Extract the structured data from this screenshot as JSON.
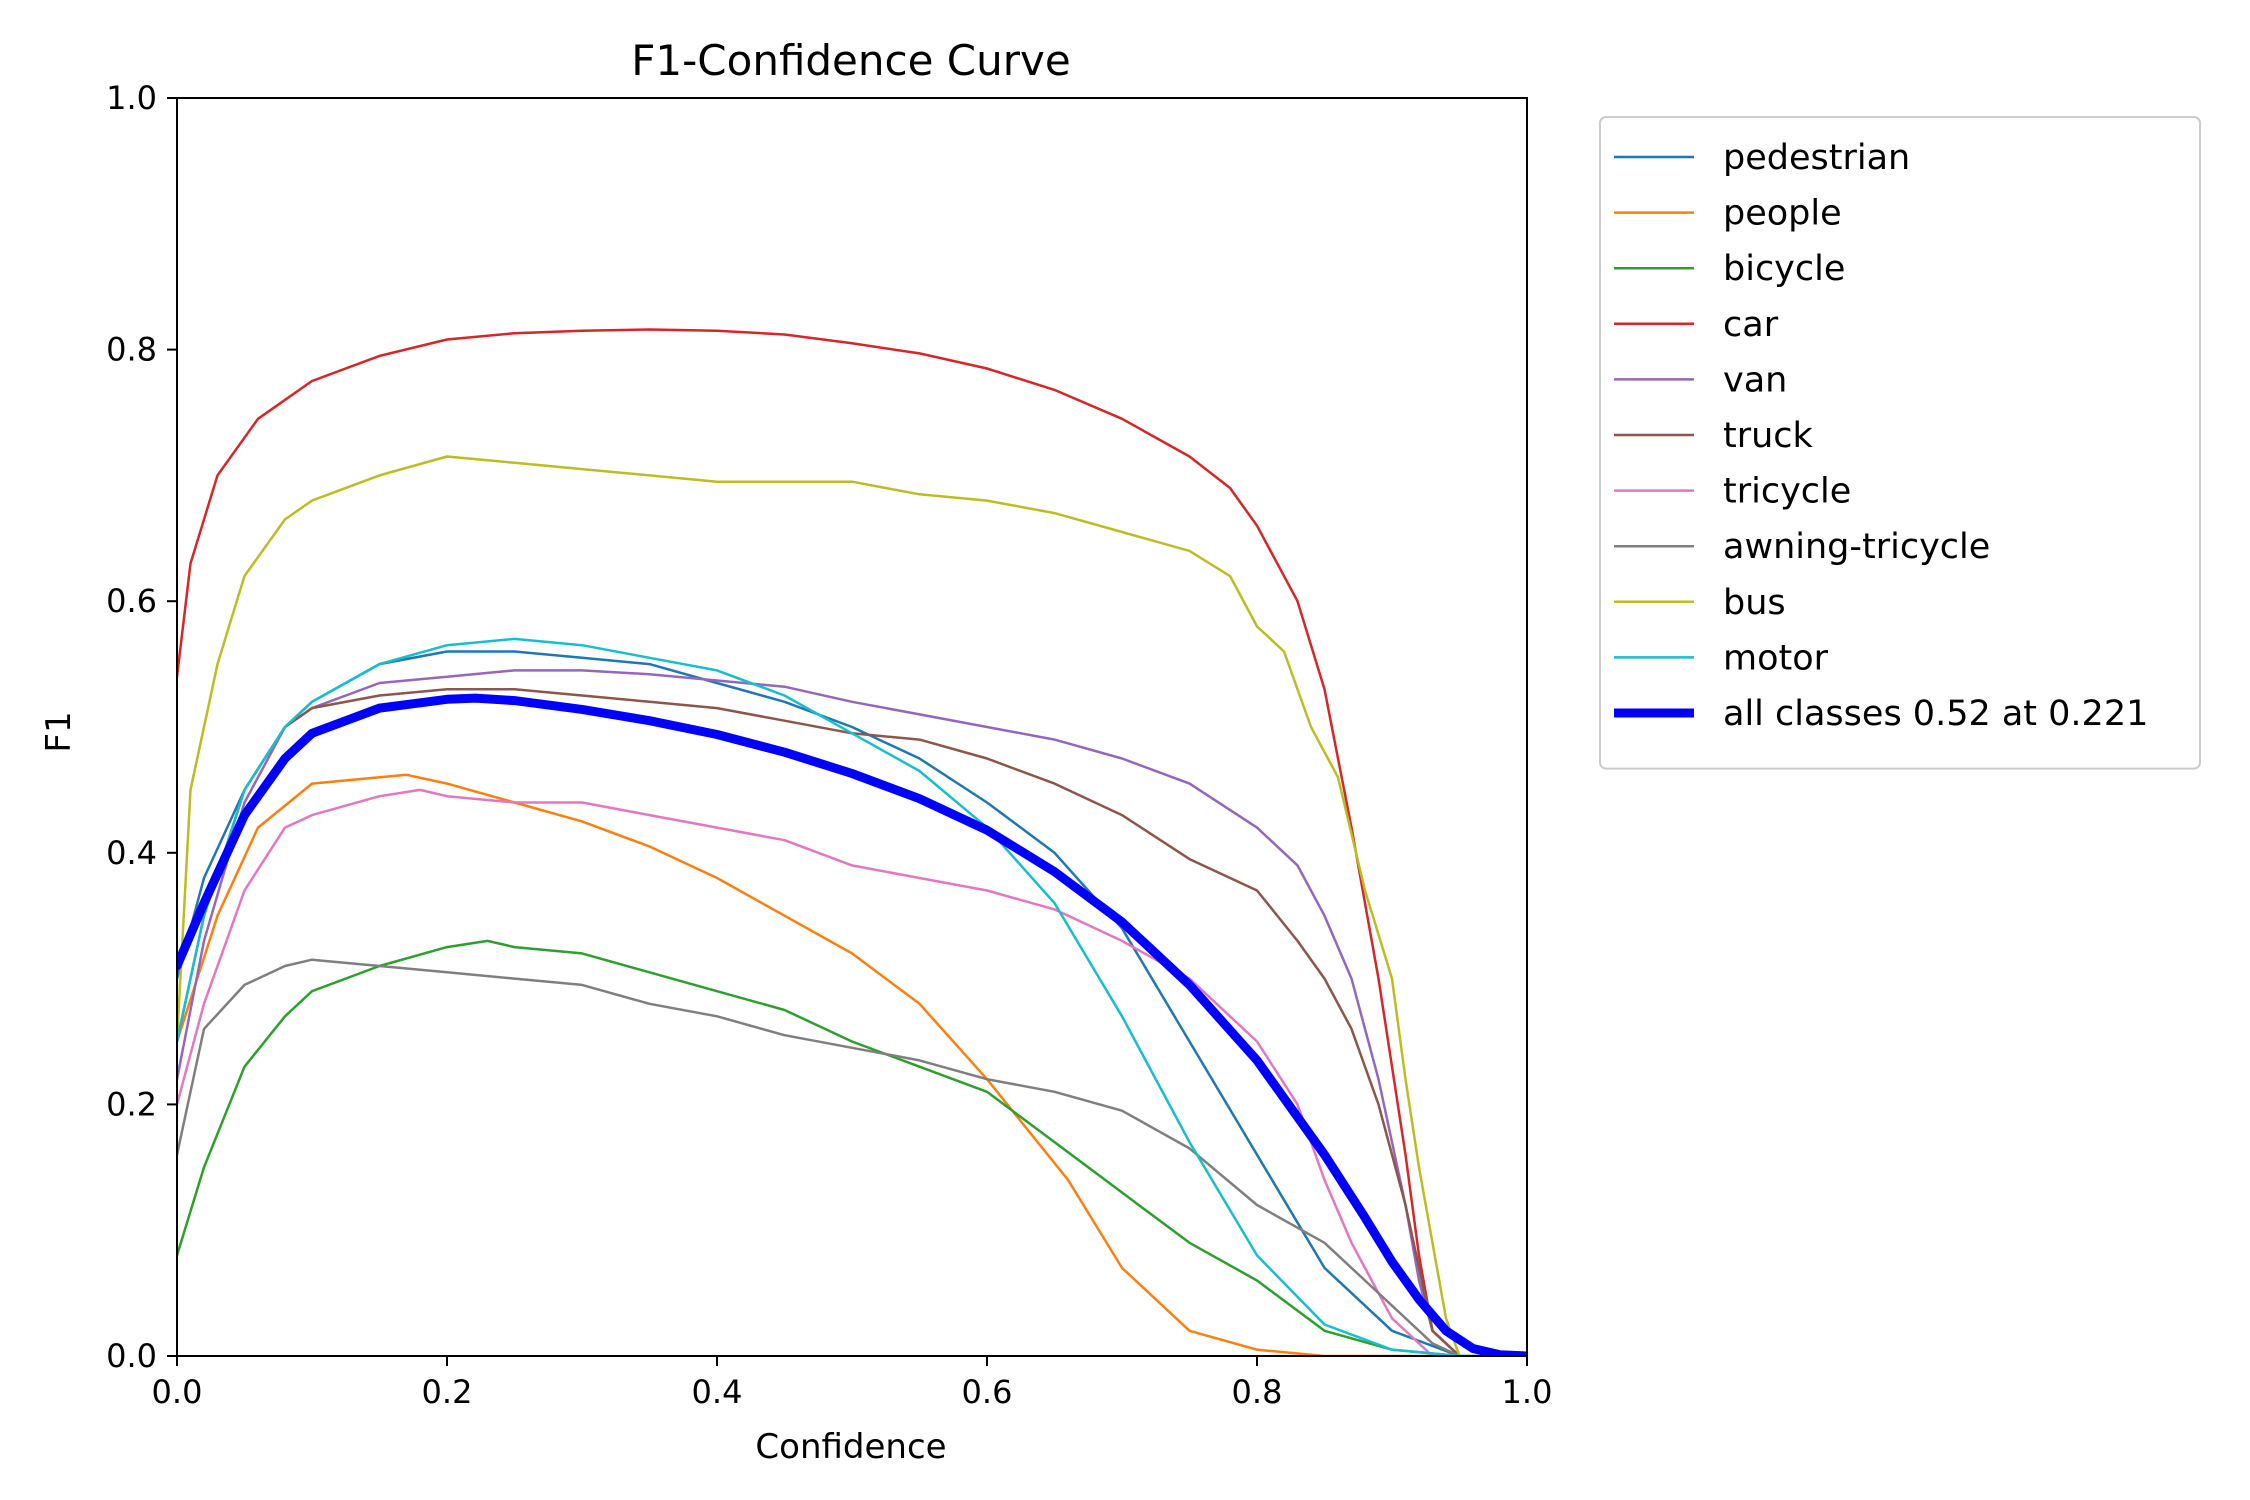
{
  "chart_data": {
    "type": "line",
    "title": "F1-Confidence Curve",
    "xlabel": "Confidence",
    "ylabel": "F1",
    "xlim": [
      0.0,
      1.0
    ],
    "ylim": [
      0.0,
      1.0
    ],
    "xticks": [
      "0.0",
      "0.2",
      "0.4",
      "0.6",
      "0.8",
      "1.0"
    ],
    "yticks": [
      "0.0",
      "0.2",
      "0.4",
      "0.6",
      "0.8",
      "1.0"
    ],
    "grid": false,
    "legend_position": "outside-right-top",
    "series": [
      {
        "name": "pedestrian",
        "color": "#1f77b4",
        "width": 2.5,
        "points": [
          [
            0,
            0.3
          ],
          [
            0.02,
            0.38
          ],
          [
            0.05,
            0.45
          ],
          [
            0.08,
            0.5
          ],
          [
            0.1,
            0.52
          ],
          [
            0.15,
            0.55
          ],
          [
            0.2,
            0.56
          ],
          [
            0.25,
            0.56
          ],
          [
            0.3,
            0.555
          ],
          [
            0.35,
            0.55
          ],
          [
            0.4,
            0.535
          ],
          [
            0.45,
            0.52
          ],
          [
            0.5,
            0.5
          ],
          [
            0.55,
            0.475
          ],
          [
            0.6,
            0.44
          ],
          [
            0.65,
            0.4
          ],
          [
            0.7,
            0.34
          ],
          [
            0.75,
            0.25
          ],
          [
            0.8,
            0.16
          ],
          [
            0.85,
            0.07
          ],
          [
            0.9,
            0.02
          ],
          [
            0.95,
            0.0
          ],
          [
            1.0,
            0.0
          ]
        ]
      },
      {
        "name": "people",
        "color": "#ff7f0e",
        "width": 2.5,
        "points": [
          [
            0,
            0.25
          ],
          [
            0.03,
            0.35
          ],
          [
            0.06,
            0.42
          ],
          [
            0.1,
            0.455
          ],
          [
            0.15,
            0.46
          ],
          [
            0.17,
            0.462
          ],
          [
            0.2,
            0.455
          ],
          [
            0.25,
            0.44
          ],
          [
            0.3,
            0.425
          ],
          [
            0.35,
            0.405
          ],
          [
            0.4,
            0.38
          ],
          [
            0.45,
            0.35
          ],
          [
            0.5,
            0.32
          ],
          [
            0.55,
            0.28
          ],
          [
            0.6,
            0.22
          ],
          [
            0.63,
            0.18
          ],
          [
            0.66,
            0.14
          ],
          [
            0.7,
            0.07
          ],
          [
            0.75,
            0.02
          ],
          [
            0.8,
            0.005
          ],
          [
            0.85,
            0.0
          ],
          [
            1.0,
            0.0
          ]
        ]
      },
      {
        "name": "bicycle",
        "color": "#2ca02c",
        "width": 2.5,
        "points": [
          [
            0,
            0.08
          ],
          [
            0.02,
            0.15
          ],
          [
            0.05,
            0.23
          ],
          [
            0.08,
            0.27
          ],
          [
            0.1,
            0.29
          ],
          [
            0.15,
            0.31
          ],
          [
            0.2,
            0.325
          ],
          [
            0.23,
            0.33
          ],
          [
            0.25,
            0.325
          ],
          [
            0.3,
            0.32
          ],
          [
            0.35,
            0.305
          ],
          [
            0.4,
            0.29
          ],
          [
            0.45,
            0.275
          ],
          [
            0.5,
            0.25
          ],
          [
            0.55,
            0.23
          ],
          [
            0.6,
            0.21
          ],
          [
            0.65,
            0.17
          ],
          [
            0.7,
            0.13
          ],
          [
            0.75,
            0.09
          ],
          [
            0.8,
            0.06
          ],
          [
            0.85,
            0.02
          ],
          [
            0.9,
            0.005
          ],
          [
            0.95,
            0.0
          ],
          [
            1.0,
            0.0
          ]
        ]
      },
      {
        "name": "car",
        "color": "#d62728",
        "width": 2.5,
        "points": [
          [
            0,
            0.54
          ],
          [
            0.01,
            0.63
          ],
          [
            0.03,
            0.7
          ],
          [
            0.06,
            0.745
          ],
          [
            0.1,
            0.775
          ],
          [
            0.15,
            0.795
          ],
          [
            0.2,
            0.808
          ],
          [
            0.25,
            0.813
          ],
          [
            0.3,
            0.815
          ],
          [
            0.35,
            0.816
          ],
          [
            0.4,
            0.815
          ],
          [
            0.45,
            0.812
          ],
          [
            0.5,
            0.805
          ],
          [
            0.55,
            0.797
          ],
          [
            0.6,
            0.785
          ],
          [
            0.65,
            0.768
          ],
          [
            0.7,
            0.745
          ],
          [
            0.75,
            0.715
          ],
          [
            0.78,
            0.69
          ],
          [
            0.8,
            0.66
          ],
          [
            0.83,
            0.6
          ],
          [
            0.85,
            0.53
          ],
          [
            0.87,
            0.42
          ],
          [
            0.89,
            0.3
          ],
          [
            0.91,
            0.16
          ],
          [
            0.92,
            0.08
          ],
          [
            0.93,
            0.02
          ],
          [
            0.95,
            0.0
          ],
          [
            1.0,
            0.0
          ]
        ]
      },
      {
        "name": "van",
        "color": "#9467bd",
        "width": 2.5,
        "points": [
          [
            0,
            0.22
          ],
          [
            0.02,
            0.33
          ],
          [
            0.05,
            0.44
          ],
          [
            0.08,
            0.5
          ],
          [
            0.1,
            0.515
          ],
          [
            0.15,
            0.535
          ],
          [
            0.2,
            0.54
          ],
          [
            0.25,
            0.545
          ],
          [
            0.3,
            0.545
          ],
          [
            0.35,
            0.542
          ],
          [
            0.4,
            0.537
          ],
          [
            0.45,
            0.532
          ],
          [
            0.5,
            0.52
          ],
          [
            0.55,
            0.51
          ],
          [
            0.6,
            0.5
          ],
          [
            0.65,
            0.49
          ],
          [
            0.7,
            0.475
          ],
          [
            0.75,
            0.455
          ],
          [
            0.8,
            0.42
          ],
          [
            0.83,
            0.39
          ],
          [
            0.85,
            0.35
          ],
          [
            0.87,
            0.3
          ],
          [
            0.89,
            0.22
          ],
          [
            0.91,
            0.12
          ],
          [
            0.92,
            0.06
          ],
          [
            0.93,
            0.02
          ],
          [
            0.95,
            0.0
          ],
          [
            1.0,
            0.0
          ]
        ]
      },
      {
        "name": "truck",
        "color": "#8c564b",
        "width": 2.5,
        "points": [
          [
            0,
            0.25
          ],
          [
            0.02,
            0.35
          ],
          [
            0.05,
            0.45
          ],
          [
            0.08,
            0.5
          ],
          [
            0.1,
            0.515
          ],
          [
            0.15,
            0.525
          ],
          [
            0.2,
            0.53
          ],
          [
            0.25,
            0.53
          ],
          [
            0.3,
            0.525
          ],
          [
            0.35,
            0.52
          ],
          [
            0.4,
            0.515
          ],
          [
            0.45,
            0.505
          ],
          [
            0.5,
            0.495
          ],
          [
            0.55,
            0.49
          ],
          [
            0.6,
            0.475
          ],
          [
            0.65,
            0.455
          ],
          [
            0.7,
            0.43
          ],
          [
            0.75,
            0.395
          ],
          [
            0.8,
            0.37
          ],
          [
            0.83,
            0.33
          ],
          [
            0.85,
            0.3
          ],
          [
            0.87,
            0.26
          ],
          [
            0.89,
            0.2
          ],
          [
            0.91,
            0.12
          ],
          [
            0.92,
            0.07
          ],
          [
            0.93,
            0.02
          ],
          [
            0.95,
            0.0
          ],
          [
            1.0,
            0.0
          ]
        ]
      },
      {
        "name": "tricycle",
        "color": "#e377c2",
        "width": 2.5,
        "points": [
          [
            0,
            0.2
          ],
          [
            0.02,
            0.28
          ],
          [
            0.05,
            0.37
          ],
          [
            0.08,
            0.42
          ],
          [
            0.1,
            0.43
          ],
          [
            0.15,
            0.445
          ],
          [
            0.18,
            0.45
          ],
          [
            0.2,
            0.445
          ],
          [
            0.25,
            0.44
          ],
          [
            0.3,
            0.44
          ],
          [
            0.35,
            0.43
          ],
          [
            0.4,
            0.42
          ],
          [
            0.45,
            0.41
          ],
          [
            0.5,
            0.39
          ],
          [
            0.55,
            0.38
          ],
          [
            0.6,
            0.37
          ],
          [
            0.65,
            0.355
          ],
          [
            0.7,
            0.33
          ],
          [
            0.75,
            0.3
          ],
          [
            0.8,
            0.25
          ],
          [
            0.83,
            0.2
          ],
          [
            0.85,
            0.14
          ],
          [
            0.87,
            0.09
          ],
          [
            0.9,
            0.03
          ],
          [
            0.93,
            0.0
          ],
          [
            1.0,
            0.0
          ]
        ]
      },
      {
        "name": "awning-tricycle",
        "color": "#7f7f7f",
        "width": 2.5,
        "points": [
          [
            0,
            0.16
          ],
          [
            0.02,
            0.26
          ],
          [
            0.05,
            0.295
          ],
          [
            0.08,
            0.31
          ],
          [
            0.1,
            0.315
          ],
          [
            0.15,
            0.31
          ],
          [
            0.2,
            0.305
          ],
          [
            0.25,
            0.3
          ],
          [
            0.3,
            0.295
          ],
          [
            0.35,
            0.28
          ],
          [
            0.4,
            0.27
          ],
          [
            0.45,
            0.255
          ],
          [
            0.5,
            0.245
          ],
          [
            0.55,
            0.235
          ],
          [
            0.6,
            0.22
          ],
          [
            0.65,
            0.21
          ],
          [
            0.7,
            0.195
          ],
          [
            0.75,
            0.165
          ],
          [
            0.8,
            0.12
          ],
          [
            0.85,
            0.09
          ],
          [
            0.88,
            0.06
          ],
          [
            0.9,
            0.04
          ],
          [
            0.93,
            0.01
          ],
          [
            0.95,
            0.0
          ],
          [
            1.0,
            0.0
          ]
        ]
      },
      {
        "name": "bus",
        "color": "#bcbd22",
        "width": 2.5,
        "points": [
          [
            0,
            0.25
          ],
          [
            0.01,
            0.45
          ],
          [
            0.03,
            0.55
          ],
          [
            0.05,
            0.62
          ],
          [
            0.08,
            0.665
          ],
          [
            0.1,
            0.68
          ],
          [
            0.15,
            0.7
          ],
          [
            0.2,
            0.715
          ],
          [
            0.25,
            0.71
          ],
          [
            0.3,
            0.705
          ],
          [
            0.35,
            0.7
          ],
          [
            0.4,
            0.695
          ],
          [
            0.45,
            0.695
          ],
          [
            0.5,
            0.695
          ],
          [
            0.55,
            0.685
          ],
          [
            0.6,
            0.68
          ],
          [
            0.65,
            0.67
          ],
          [
            0.7,
            0.655
          ],
          [
            0.75,
            0.64
          ],
          [
            0.78,
            0.62
          ],
          [
            0.8,
            0.58
          ],
          [
            0.82,
            0.56
          ],
          [
            0.84,
            0.5
          ],
          [
            0.86,
            0.46
          ],
          [
            0.88,
            0.37
          ],
          [
            0.9,
            0.3
          ],
          [
            0.91,
            0.22
          ],
          [
            0.92,
            0.15
          ],
          [
            0.93,
            0.09
          ],
          [
            0.94,
            0.03
          ],
          [
            0.95,
            0.0
          ],
          [
            1.0,
            0.0
          ]
        ]
      },
      {
        "name": "motor",
        "color": "#17becf",
        "width": 2.5,
        "points": [
          [
            0,
            0.25
          ],
          [
            0.02,
            0.35
          ],
          [
            0.05,
            0.45
          ],
          [
            0.08,
            0.5
          ],
          [
            0.1,
            0.52
          ],
          [
            0.15,
            0.55
          ],
          [
            0.2,
            0.565
          ],
          [
            0.25,
            0.57
          ],
          [
            0.3,
            0.565
          ],
          [
            0.35,
            0.555
          ],
          [
            0.4,
            0.545
          ],
          [
            0.45,
            0.525
          ],
          [
            0.5,
            0.495
          ],
          [
            0.55,
            0.465
          ],
          [
            0.6,
            0.42
          ],
          [
            0.65,
            0.36
          ],
          [
            0.7,
            0.27
          ],
          [
            0.75,
            0.17
          ],
          [
            0.8,
            0.08
          ],
          [
            0.85,
            0.025
          ],
          [
            0.9,
            0.005
          ],
          [
            0.95,
            0.0
          ],
          [
            1.0,
            0.0
          ]
        ]
      },
      {
        "name": "all classes 0.52 at 0.221",
        "color": "#0000ff",
        "width": 9,
        "points": [
          [
            0,
            0.31
          ],
          [
            0.02,
            0.36
          ],
          [
            0.05,
            0.43
          ],
          [
            0.08,
            0.475
          ],
          [
            0.1,
            0.495
          ],
          [
            0.15,
            0.515
          ],
          [
            0.2,
            0.522
          ],
          [
            0.221,
            0.523
          ],
          [
            0.25,
            0.521
          ],
          [
            0.3,
            0.514
          ],
          [
            0.35,
            0.505
          ],
          [
            0.4,
            0.494
          ],
          [
            0.45,
            0.48
          ],
          [
            0.5,
            0.463
          ],
          [
            0.55,
            0.443
          ],
          [
            0.6,
            0.418
          ],
          [
            0.65,
            0.385
          ],
          [
            0.7,
            0.345
          ],
          [
            0.75,
            0.295
          ],
          [
            0.8,
            0.235
          ],
          [
            0.85,
            0.16
          ],
          [
            0.88,
            0.11
          ],
          [
            0.9,
            0.075
          ],
          [
            0.92,
            0.045
          ],
          [
            0.94,
            0.02
          ],
          [
            0.96,
            0.006
          ],
          [
            0.98,
            0.001
          ],
          [
            1.0,
            0.0
          ]
        ]
      }
    ]
  }
}
